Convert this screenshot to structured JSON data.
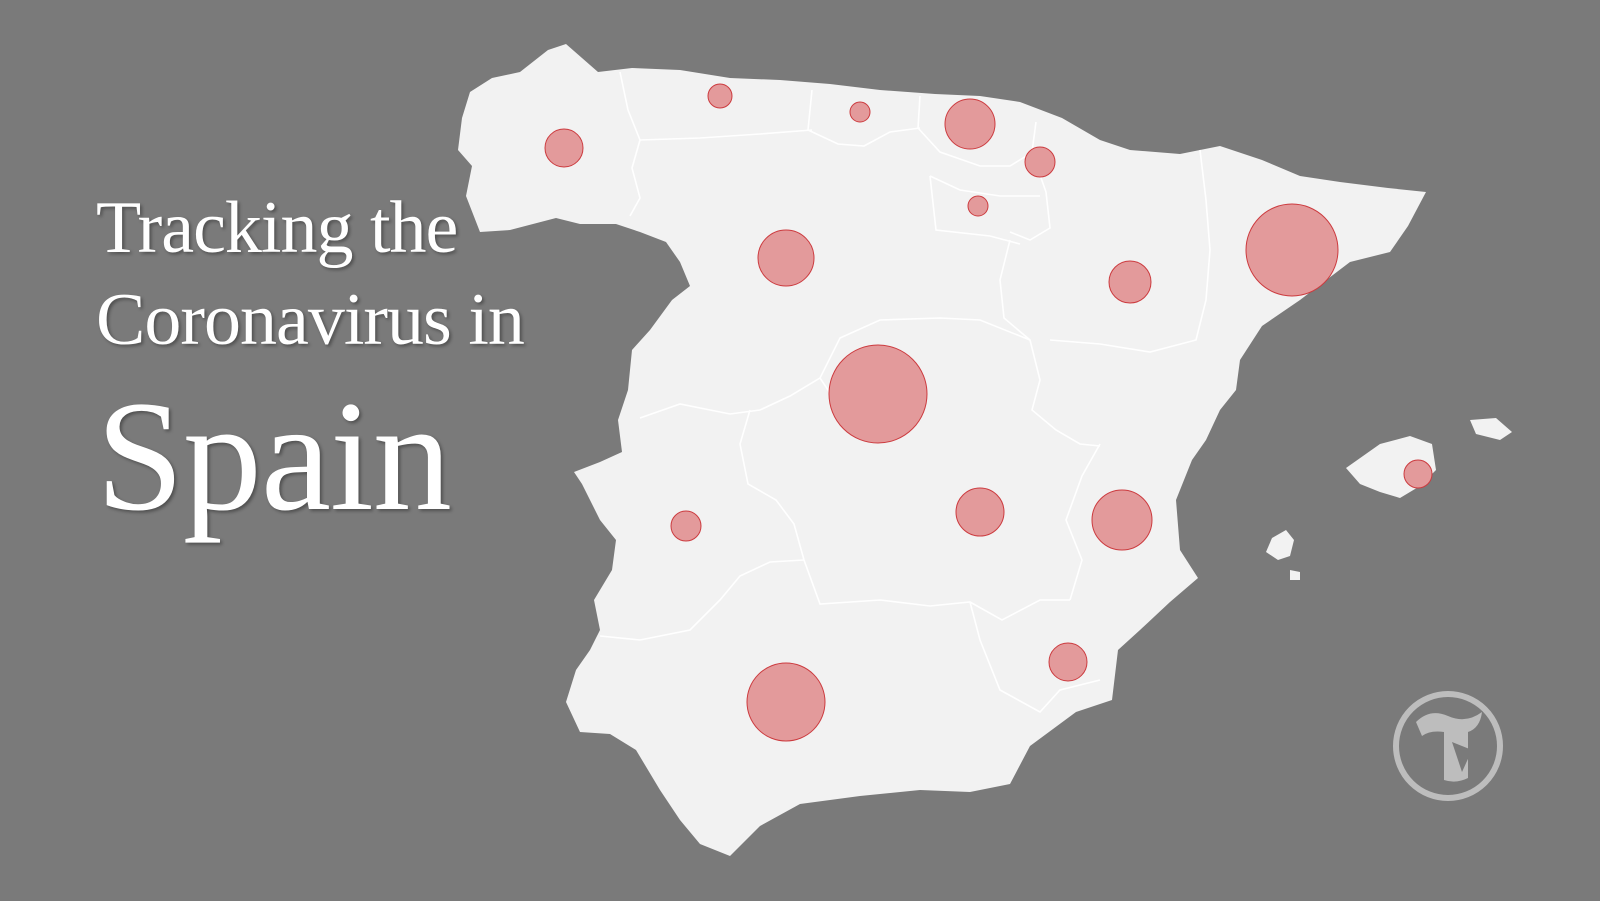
{
  "title": {
    "line1": "Tracking the",
    "line2": "Coronavirus in",
    "country": "Spain"
  },
  "colors": {
    "background": "#7a7a7a",
    "land": "#f2f2f2",
    "borders": "#ffffff",
    "bubble_fill": "#e39a9b",
    "bubble_stroke": "#cc3b3f",
    "logo": "#bdbdbd"
  },
  "logo_icon": "nyt-t-logo-icon",
  "regions": [
    {
      "id": "galicia"
    },
    {
      "id": "asturias"
    },
    {
      "id": "cantabria"
    },
    {
      "id": "basque-country"
    },
    {
      "id": "navarra"
    },
    {
      "id": "la-rioja"
    },
    {
      "id": "castilla-y-leon"
    },
    {
      "id": "aragon"
    },
    {
      "id": "catalonia"
    },
    {
      "id": "madrid"
    },
    {
      "id": "castilla-la-mancha"
    },
    {
      "id": "valencia"
    },
    {
      "id": "extremadura"
    },
    {
      "id": "murcia"
    },
    {
      "id": "andalusia"
    },
    {
      "id": "balearic-islands"
    }
  ]
}
